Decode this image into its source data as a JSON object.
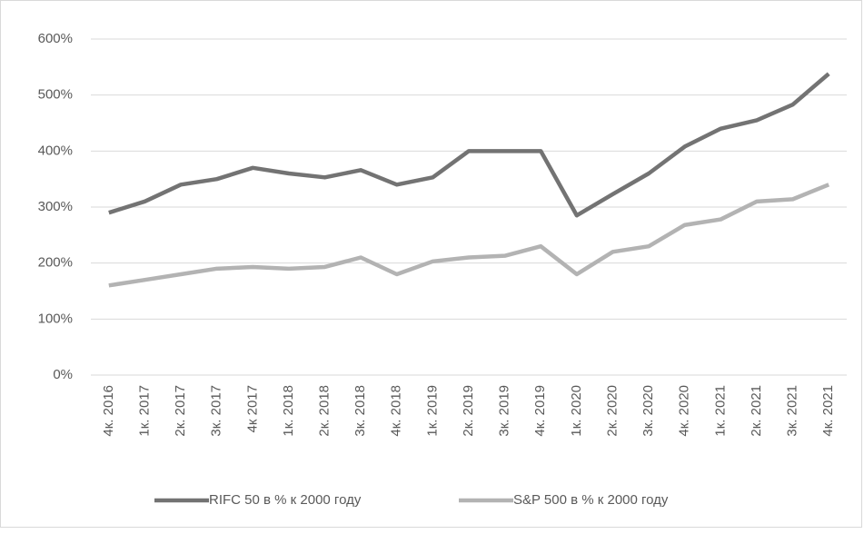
{
  "chart_data": {
    "type": "line",
    "categories": [
      "4к. 2016",
      "1к. 2017",
      "2к. 2017",
      "3к. 2017",
      "4к 2017",
      "1к. 2018",
      "2к. 2018",
      "3к. 2018",
      "4к. 2018",
      "1к. 2019",
      "2к. 2019",
      "3к. 2019",
      "4к. 2019",
      "1к. 2020",
      "2к. 2020",
      "3к. 2020",
      "4к. 2020",
      "1к. 2021",
      "2к. 2021",
      "3к. 2021",
      "4к. 2021"
    ],
    "series": [
      {
        "name": "RIFC 50 в % к 2000 году",
        "color": "#737373",
        "values": [
          290,
          310,
          340,
          350,
          370,
          360,
          353,
          366,
          340,
          353,
          400,
          400,
          400,
          285,
          323,
          360,
          408,
          440,
          455,
          483,
          538
        ]
      },
      {
        "name": "S&P 500 в % к 2000 году",
        "color": "#b3b3b3",
        "values": [
          160,
          170,
          180,
          190,
          193,
          190,
          193,
          210,
          180,
          203,
          210,
          213,
          230,
          180,
          220,
          230,
          268,
          278,
          310,
          314,
          340
        ]
      }
    ],
    "ylim": [
      0,
      600
    ],
    "yticks": [
      {
        "value": 0,
        "label": "0%"
      },
      {
        "value": 100,
        "label": "100%"
      },
      {
        "value": 200,
        "label": "200%"
      },
      {
        "value": 300,
        "label": "300%"
      },
      {
        "value": 400,
        "label": "400%"
      },
      {
        "value": 500,
        "label": "500%"
      },
      {
        "value": 600,
        "label": "600%"
      }
    ],
    "grid": true,
    "legend": "bottom"
  }
}
